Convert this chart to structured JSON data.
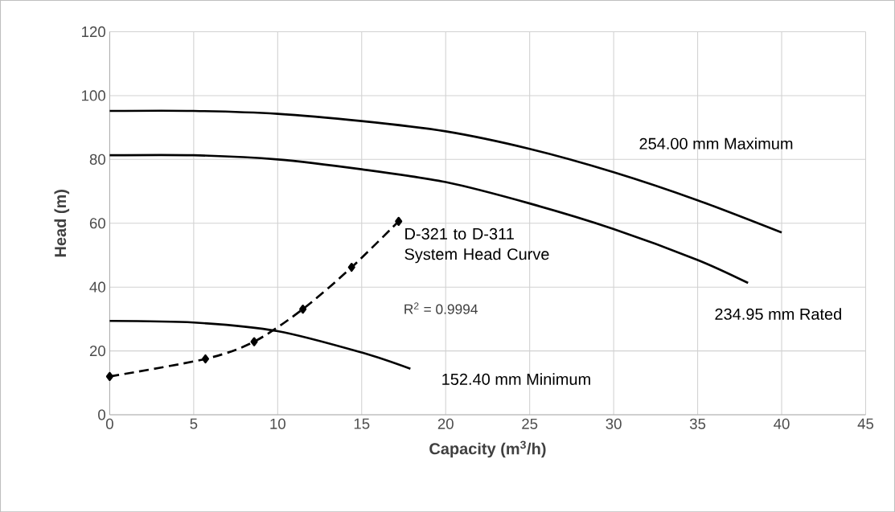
{
  "chart_data": {
    "type": "line",
    "xlabel": "Capacity (m$^{3}$/h)",
    "ylabel": "Head (m)",
    "xlim": [
      0,
      45
    ],
    "xticks": [
      0,
      5,
      10,
      15,
      20,
      25,
      30,
      35,
      40,
      45
    ],
    "ylim": [
      0,
      120
    ],
    "yticks": [
      0,
      20,
      40,
      60,
      80,
      100,
      120
    ],
    "grid": true,
    "series": [
      {
        "name": "254.00 mm Maximum",
        "color": "#000000",
        "x": [
          0,
          5,
          10,
          15,
          20,
          25,
          30,
          35,
          40
        ],
        "values": [
          95.2,
          95.2,
          94.3,
          92.0,
          88.8,
          83.3,
          76.0,
          67.2,
          57.1
        ]
      },
      {
        "name": "234.95 mm Rated",
        "color": "#000000",
        "x": [
          0,
          5,
          10,
          15,
          20,
          25,
          30,
          35,
          38
        ],
        "values": [
          81.3,
          81.3,
          80.0,
          76.9,
          72.9,
          66.2,
          58.2,
          48.5,
          41.3
        ]
      },
      {
        "name": "152.40 mm Minimum",
        "color": "#000000",
        "x": [
          0,
          5,
          10,
          15,
          17.9
        ],
        "values": [
          29.4,
          28.9,
          26.2,
          19.5,
          14.4
        ]
      },
      {
        "name": "D-321 to D-311 System Head Curve",
        "color": "#000000",
        "marker": "diamond",
        "line_style": "dashed",
        "x": [
          0,
          5.7,
          8.6,
          11.5,
          14.4,
          17.2
        ],
        "values": [
          12.0,
          17.5,
          22.9,
          33.1,
          46.2,
          60.6
        ]
      }
    ],
    "annotations": [
      "R$^{2}$ = 0.9994"
    ]
  }
}
